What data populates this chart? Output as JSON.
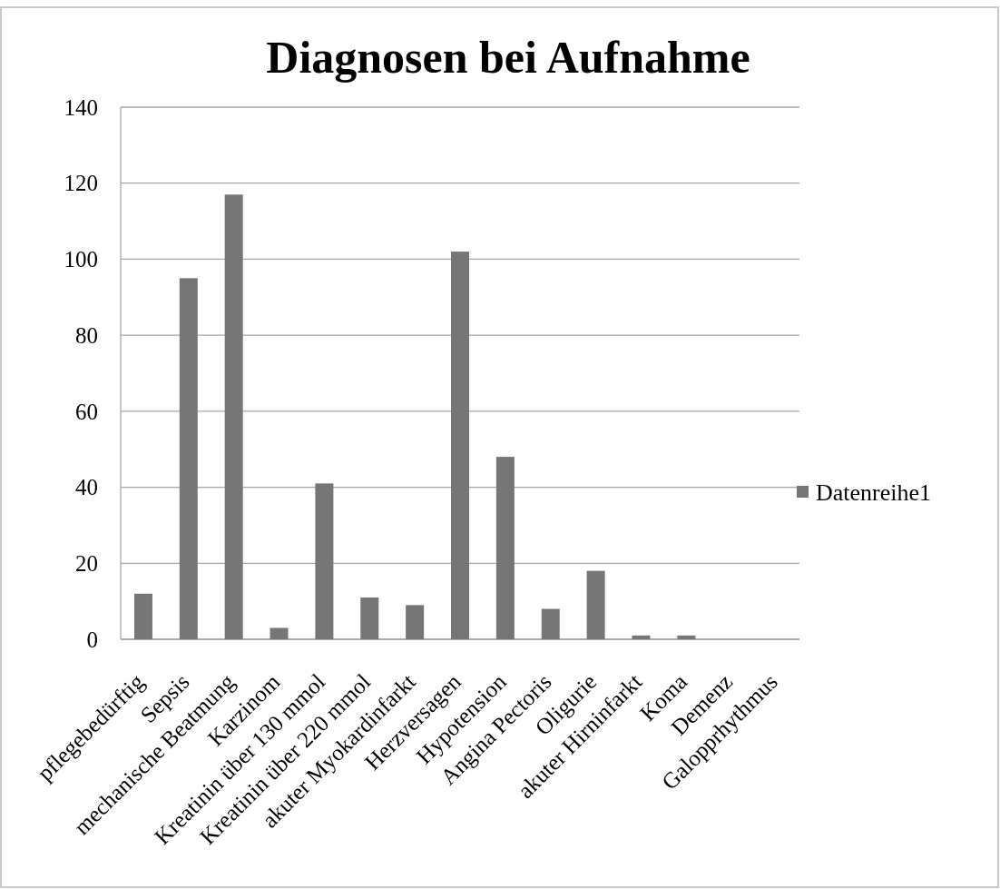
{
  "chart_data": {
    "type": "bar",
    "title": "Diagnosen bei Aufnahme",
    "categories": [
      "pflegebedürftig",
      "Sepsis",
      "mechanische Beatmung",
      "Karzinom",
      "Kreatinin über 130 mmol",
      "Kreatinin über 220 mmol",
      "akuter Myokardinfarkt",
      "Herzversagen",
      "Hypotension",
      "Angina Pectoris",
      "Oligurie",
      "akuter Hirninfarkt",
      "Koma",
      "Demenz",
      "Galopprhythmus"
    ],
    "series": [
      {
        "name": "Datenreihe1",
        "color": "#767676",
        "values": [
          12,
          95,
          117,
          3,
          41,
          11,
          9,
          102,
          48,
          8,
          18,
          1,
          1,
          0,
          0
        ]
      }
    ],
    "ylim": [
      0,
      140
    ],
    "yticks": [
      0,
      20,
      40,
      60,
      80,
      100,
      120,
      140
    ],
    "grid": "y",
    "legend": "right"
  }
}
